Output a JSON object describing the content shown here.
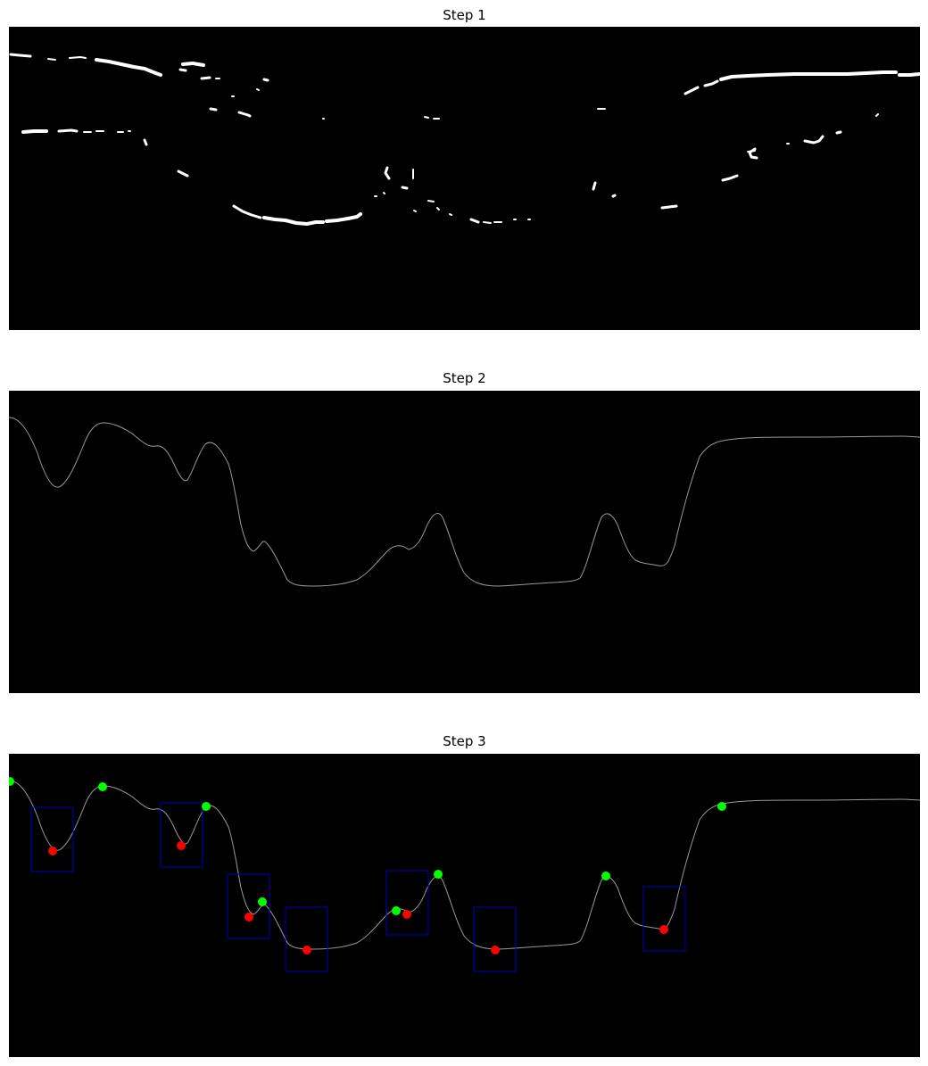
{
  "figure": {
    "panels": [
      {
        "title": "Step 1",
        "content": "binary edge mask"
      },
      {
        "title": "Step 2",
        "content": "extracted contour line"
      },
      {
        "title": "Step 3",
        "content": "contour with peaks, valleys and valley boxes"
      }
    ]
  },
  "colors": {
    "background": "#000000",
    "edge_pixels": "#ffffff",
    "contour_line": "#9a9a9a",
    "peak_marker": "#00ff00",
    "valley_marker": "#ff0000",
    "valley_box": "#0000c8"
  },
  "legend": {
    "peak_color_meaning": "green",
    "valley_color_meaning": "red"
  }
}
